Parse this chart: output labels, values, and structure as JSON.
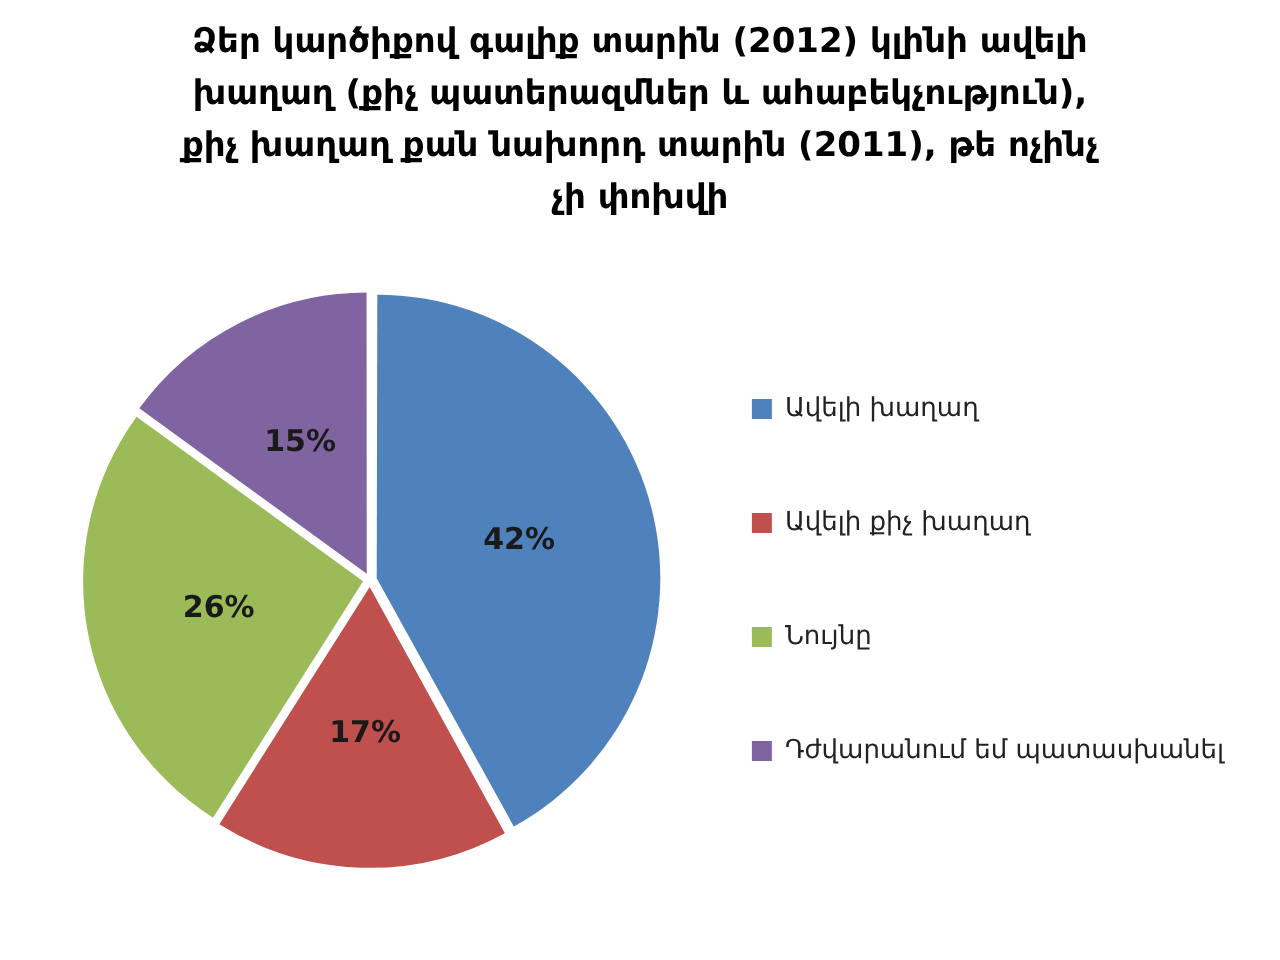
{
  "chart_data": {
    "type": "pie",
    "title": "Ձեր կարծիքով գալիք տարին (2012) կլինի ավելի խաղաղ (քիչ պատերազմներ և ահաբեկչություն), քիչ խաղաղ քան նախորդ տարին (2011), թե ոչինչ չի փոխվի",
    "categories": [
      "Ավելի խաղաղ",
      "Ավելի քիչ խաղաղ",
      "Նույնը",
      "Դժվարանում եմ պատասխանել"
    ],
    "values": [
      42,
      17,
      26,
      15
    ],
    "colors": [
      "#4f81bd",
      "#c0504d",
      "#9bbb59",
      "#8064a2"
    ],
    "value_labels": [
      "42%",
      "17%",
      "26%",
      "15%"
    ],
    "legend": "right"
  }
}
